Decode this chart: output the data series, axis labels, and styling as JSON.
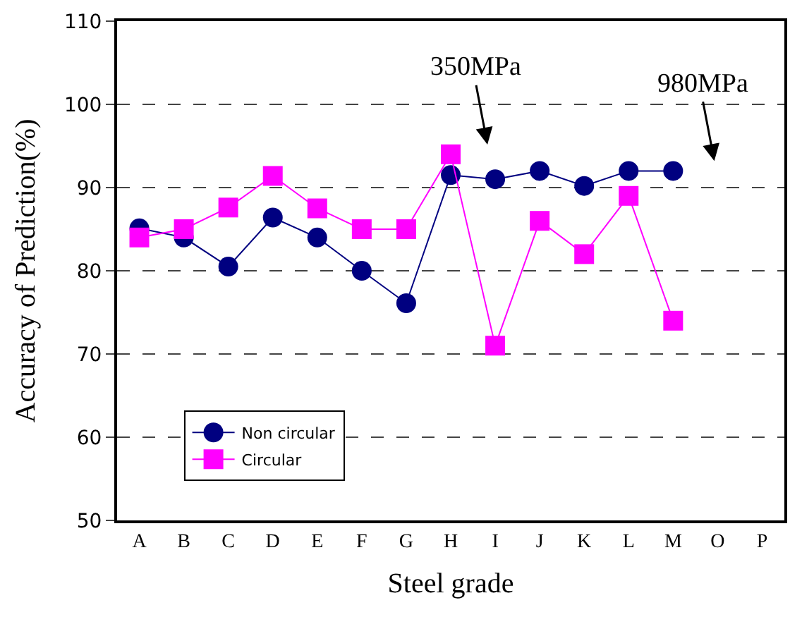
{
  "chart_data": {
    "type": "line",
    "xlabel": "Steel grade",
    "ylabel": "Accuracy of Prediction(%)",
    "categories": [
      "A",
      "B",
      "C",
      "D",
      "E",
      "F",
      "G",
      "H",
      "I",
      "J",
      "K",
      "L",
      "M",
      "O",
      "P"
    ],
    "series": [
      {
        "name": "Non circular",
        "color": "#000080",
        "marker": "circle",
        "values": [
          85.1,
          84,
          80.5,
          86.4,
          84,
          80,
          76.1,
          91.5,
          91,
          92,
          90.2,
          92,
          92,
          null,
          null
        ]
      },
      {
        "name": "Circular",
        "color": "#ff00ff",
        "marker": "square",
        "values": [
          84,
          85,
          87.6,
          91.4,
          87.5,
          85,
          85,
          94,
          71,
          86,
          82,
          89,
          74,
          null,
          null
        ]
      }
    ],
    "ylim": [
      50,
      110
    ],
    "yticks": [
      50,
      60,
      70,
      80,
      90,
      100,
      110
    ],
    "grid": "y",
    "legend": "bottom left",
    "line_style": "solid",
    "annotations": [
      "350MPa",
      "980MPa"
    ]
  }
}
